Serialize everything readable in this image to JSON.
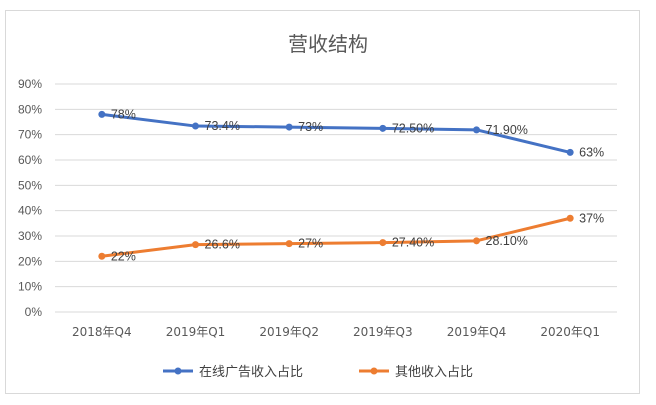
{
  "chart_data": {
    "type": "line",
    "title": "营收结构",
    "categories": [
      "2018年Q4",
      "2019年Q1",
      "2019年Q2",
      "2019年Q3",
      "2019年Q4",
      "2020年Q1"
    ],
    "ylim": [
      0,
      90
    ],
    "yticks": [
      0,
      10,
      20,
      30,
      40,
      50,
      60,
      70,
      80,
      90
    ],
    "ytick_labels": [
      "0%",
      "10%",
      "20%",
      "30%",
      "40%",
      "50%",
      "60%",
      "70%",
      "80%",
      "90%"
    ],
    "grid": true,
    "legend_position": "bottom",
    "series": [
      {
        "name": "在线广告收入占比",
        "color": "#4472C4",
        "values": [
          78,
          73.4,
          73,
          72.5,
          71.9,
          63
        ],
        "labels": [
          "78%",
          "73.4%",
          "73%",
          "72.50%",
          "71.90%",
          "63%"
        ]
      },
      {
        "name": "其他收入占比",
        "color": "#ED7D31",
        "values": [
          22,
          26.6,
          27,
          27.4,
          28.1,
          37
        ],
        "labels": [
          "22%",
          "26.6%",
          "27%",
          "27.40%",
          "28.10%",
          "37%"
        ]
      }
    ]
  }
}
